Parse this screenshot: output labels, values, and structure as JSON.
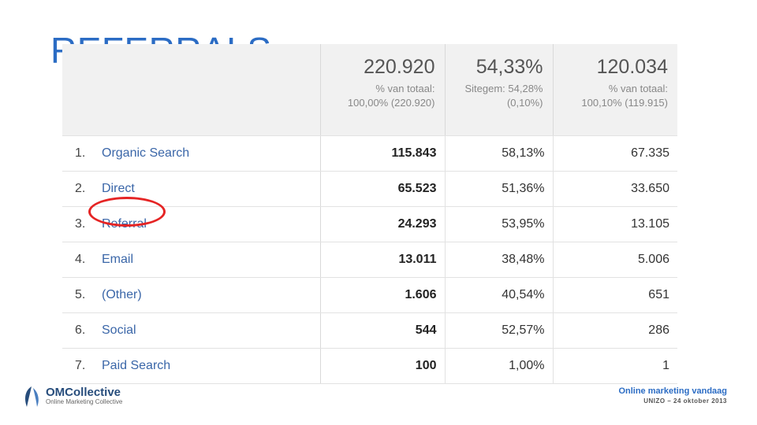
{
  "slide": {
    "title": "REFERRALS",
    "title_dot": "."
  },
  "report": {
    "header": [
      {
        "value": "220.920",
        "sub1": "% van totaal:",
        "sub2": "100,00% (220.920)"
      },
      {
        "value": "54,33%",
        "sub1": "Sitegem: 54,28%",
        "sub2": "(0,10%)"
      },
      {
        "value": "120.034",
        "sub1": "% van totaal:",
        "sub2": "100,10% (119.915)"
      }
    ],
    "rows": [
      {
        "index": "1.",
        "channel": "Organic Search",
        "a": "115.843",
        "b": "58,13%",
        "c": "67.335"
      },
      {
        "index": "2.",
        "channel": "Direct",
        "a": "65.523",
        "b": "51,36%",
        "c": "33.650"
      },
      {
        "index": "3.",
        "channel": "Referral",
        "a": "24.293",
        "b": "53,95%",
        "c": "13.105",
        "highlighted": true
      },
      {
        "index": "4.",
        "channel": "Email",
        "a": "13.011",
        "b": "38,48%",
        "c": "5.006"
      },
      {
        "index": "5.",
        "channel": "(Other)",
        "a": "1.606",
        "b": "40,54%",
        "c": "651"
      },
      {
        "index": "6.",
        "channel": "Social",
        "a": "544",
        "b": "52,57%",
        "c": "286"
      },
      {
        "index": "7.",
        "channel": "Paid Search",
        "a": "100",
        "b": "1,00%",
        "c": "1"
      }
    ],
    "highlight_color": "#e52424"
  },
  "logo": {
    "brand": "OMCollective",
    "tagline": "Online Marketing Collective",
    "icon": "sail-logo-icon"
  },
  "footer": {
    "line1": "Online marketing vandaag",
    "line2": "UNIZO – 24 oktober 2013"
  },
  "colors": {
    "accent": "#2b6cc4",
    "link": "#3a66a8"
  }
}
